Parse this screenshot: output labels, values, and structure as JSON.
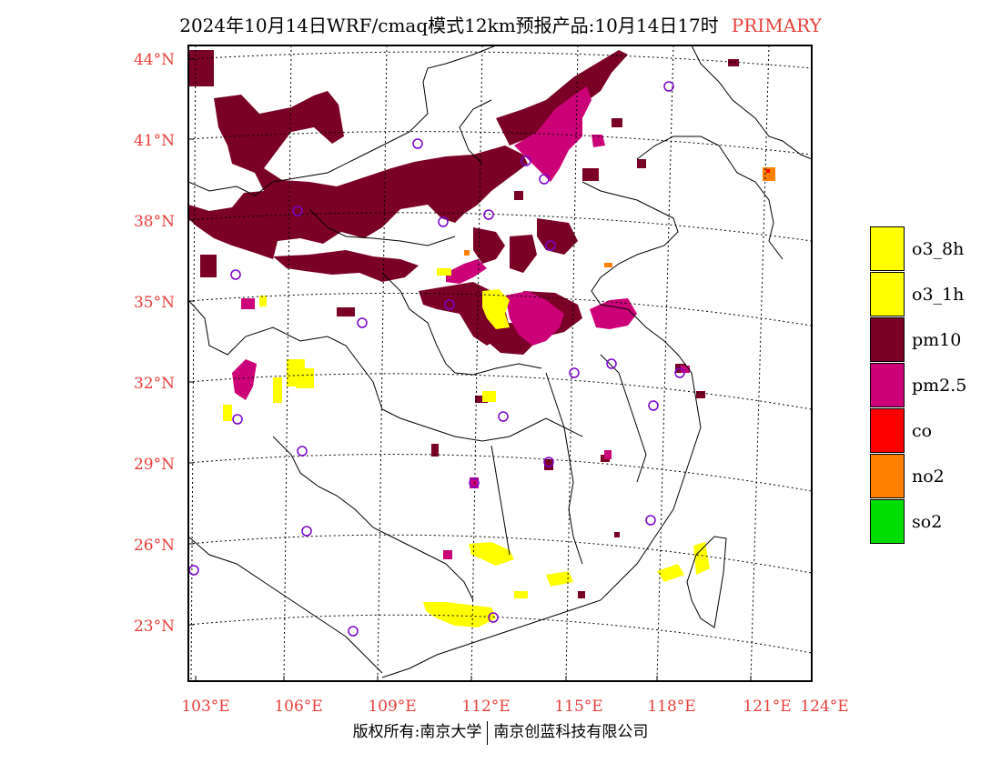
{
  "title": {
    "main": "2024年10月14日WRF/cmaq模式12km预报产品:10月14日17时",
    "tag": "PRIMARY",
    "tag_color": "#e8403a"
  },
  "axes": {
    "lat_labels": [
      "44°N",
      "41°N",
      "38°N",
      "35°N",
      "32°N",
      "29°N",
      "26°N",
      "23°N"
    ],
    "lon_labels": [
      "103°E",
      "106°E",
      "109°E",
      "112°E",
      "115°E",
      "118°E",
      "121°E",
      "124°E"
    ],
    "label_color": "#e8403a"
  },
  "legend": [
    {
      "label": "o3_8h",
      "color": "#ffff00"
    },
    {
      "label": "o3_1h",
      "color": "#ffff00"
    },
    {
      "label": "pm10",
      "color": "#7a0026"
    },
    {
      "label": "pm2.5",
      "color": "#cc0077"
    },
    {
      "label": "co",
      "color": "#ff0000"
    },
    {
      "label": "no2",
      "color": "#ff7f00"
    },
    {
      "label": "so2",
      "color": "#00dd00"
    }
  ],
  "footer": {
    "left": "版权所有:南京大学",
    "right": "南京创蓝科技有限公司"
  }
}
